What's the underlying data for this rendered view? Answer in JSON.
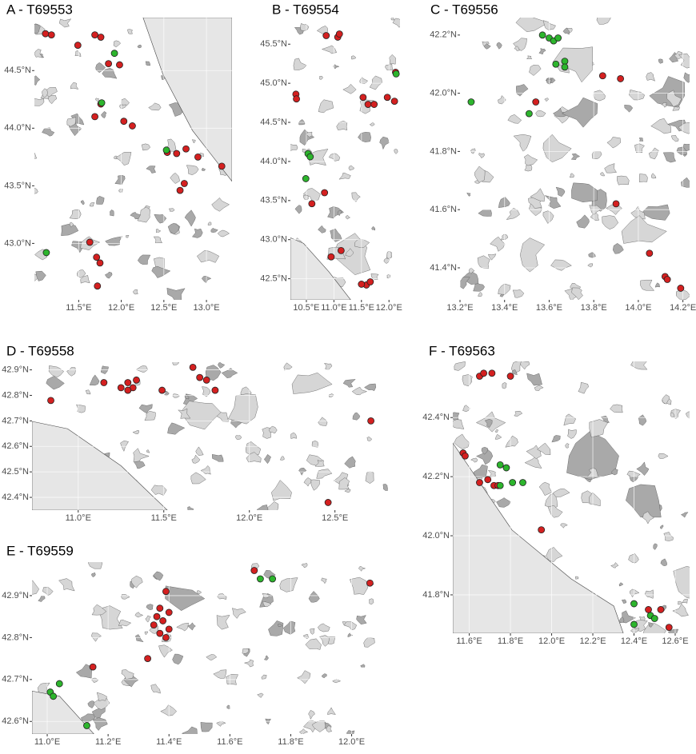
{
  "panels": [
    {
      "title": "A - T69553",
      "xlim": [
        10.98,
        13.3
      ],
      "ylim": [
        42.51,
        44.96
      ],
      "xticks": [
        {
          "value": 11.5,
          "label": "11.5°E"
        },
        {
          "value": 12.0,
          "label": "12.0°E"
        },
        {
          "value": 12.5,
          "label": "12.5°E"
        },
        {
          "value": 13.0,
          "label": "13.0°E"
        }
      ],
      "yticks": [
        {
          "value": 43.0,
          "label": "43.0°N"
        },
        {
          "value": 43.5,
          "label": "43.5°N"
        },
        {
          "value": 44.0,
          "label": "44.0°N"
        },
        {
          "value": 44.5,
          "label": "44.5°N"
        }
      ],
      "series": [
        {
          "color": "#d42020",
          "x": [
            11.11,
            11.18,
            11.49,
            11.69,
            11.76,
            11.85,
            11.98,
            11.76,
            11.69,
            12.03,
            12.13,
            12.54,
            12.65,
            12.76,
            12.9,
            13.18,
            12.74,
            12.69,
            11.63,
            11.71,
            11.75,
            11.72
          ],
          "y": [
            44.82,
            44.81,
            44.72,
            44.81,
            44.79,
            44.56,
            44.55,
            44.21,
            44.1,
            44.06,
            44.02,
            43.79,
            43.78,
            43.82,
            43.75,
            43.67,
            43.52,
            43.46,
            43.01,
            42.88,
            42.83,
            42.63
          ]
        },
        {
          "color": "#2db52d",
          "x": [
            11.92,
            11.77,
            12.53,
            11.12
          ],
          "y": [
            44.65,
            44.22,
            43.81,
            42.92
          ]
        }
      ]
    },
    {
      "title": "B - T69554",
      "xlim": [
        10.21,
        12.2
      ],
      "ylim": [
        42.23,
        45.84
      ],
      "xticks": [
        {
          "value": 10.5,
          "label": "10.5°E"
        },
        {
          "value": 11.0,
          "label": "11.0°E"
        },
        {
          "value": 11.5,
          "label": "11.5°E"
        },
        {
          "value": 12.0,
          "label": "12.0°E"
        }
      ],
      "yticks": [
        {
          "value": 42.5,
          "label": "42.5°N"
        },
        {
          "value": 43.0,
          "label": "43.0°N"
        },
        {
          "value": 43.5,
          "label": "43.5°N"
        },
        {
          "value": 44.0,
          "label": "44.0°N"
        },
        {
          "value": 44.5,
          "label": "44.5°N"
        },
        {
          "value": 45.0,
          "label": "45.0°N"
        },
        {
          "value": 45.5,
          "label": "45.5°N"
        }
      ],
      "series": [
        {
          "color": "#d42020",
          "x": [
            10.86,
            11.07,
            11.1,
            10.31,
            10.32,
            11.53,
            11.62,
            11.73,
            11.97,
            12.1,
            12.12,
            10.6,
            10.83,
            10.95,
            11.13,
            11.59,
            11.66,
            11.5
          ],
          "y": [
            45.61,
            45.59,
            45.63,
            44.86,
            44.8,
            44.82,
            44.73,
            44.73,
            44.82,
            44.77,
            45.14,
            43.46,
            43.6,
            42.78,
            42.86,
            42.42,
            42.46,
            42.43
          ]
        },
        {
          "color": "#2db52d",
          "x": [
            12.13,
            10.53,
            10.57,
            10.49
          ],
          "y": [
            45.12,
            44.1,
            44.06,
            43.78
          ]
        }
      ]
    },
    {
      "title": "C - T69556",
      "xlim": [
        13.2,
        14.23
      ],
      "ylim": [
        41.29,
        42.26
      ],
      "xticks": [
        {
          "value": 13.2,
          "label": "13.2°E"
        },
        {
          "value": 13.4,
          "label": "13.4°E"
        },
        {
          "value": 13.6,
          "label": "13.6°E"
        },
        {
          "value": 13.8,
          "label": "13.8°E"
        },
        {
          "value": 14.0,
          "label": "14.0°E"
        },
        {
          "value": 14.2,
          "label": "14.2°E"
        }
      ],
      "yticks": [
        {
          "value": 41.4,
          "label": "41.4°N"
        },
        {
          "value": 41.6,
          "label": "41.6°N"
        },
        {
          "value": 41.8,
          "label": "41.8°N"
        },
        {
          "value": 42.0,
          "label": "42.0°N"
        },
        {
          "value": 42.2,
          "label": "42.2°N"
        }
      ],
      "series": [
        {
          "color": "#d42020",
          "x": [
            13.84,
            13.92,
            13.54,
            13.9,
            14.05,
            14.12,
            14.19,
            14.13
          ],
          "y": [
            42.06,
            42.05,
            41.97,
            41.62,
            41.45,
            41.37,
            41.33,
            41.36
          ]
        },
        {
          "color": "#2db52d",
          "x": [
            13.57,
            13.6,
            13.62,
            13.64,
            13.63,
            13.67,
            13.67,
            13.25,
            13.51
          ],
          "y": [
            42.2,
            42.19,
            42.18,
            42.19,
            42.1,
            42.11,
            42.09,
            41.97,
            41.93
          ]
        }
      ]
    },
    {
      "title": "D - T69558",
      "xlim": [
        10.73,
        12.81
      ],
      "ylim": [
        42.35,
        42.93
      ],
      "xticks": [
        {
          "value": 11.0,
          "label": "11.0°E"
        },
        {
          "value": 11.5,
          "label": "11.5°E"
        },
        {
          "value": 12.0,
          "label": "12.0°E"
        },
        {
          "value": 12.5,
          "label": "12.5°E"
        }
      ],
      "yticks": [
        {
          "value": 42.4,
          "label": "42.4°N"
        },
        {
          "value": 42.5,
          "label": "42.5°N"
        },
        {
          "value": 42.6,
          "label": "42.6°N"
        },
        {
          "value": 42.7,
          "label": "42.7°N"
        },
        {
          "value": 42.8,
          "label": "42.8°N"
        },
        {
          "value": 42.9,
          "label": "42.9°N"
        }
      ],
      "series": [
        {
          "color": "#d42020",
          "x": [
            10.84,
            11.15,
            11.25,
            11.29,
            11.32,
            11.34,
            11.29,
            11.49,
            11.67,
            11.71,
            11.75,
            11.8,
            12.71,
            12.46
          ],
          "y": [
            42.78,
            42.85,
            42.83,
            42.85,
            42.83,
            42.86,
            42.82,
            42.82,
            42.91,
            42.87,
            42.86,
            42.82,
            42.7,
            42.38
          ]
        }
      ]
    },
    {
      "title": "E - T69559",
      "xlim": [
        10.95,
        12.08
      ],
      "ylim": [
        42.57,
        42.98
      ],
      "xticks": [
        {
          "value": 11.0,
          "label": "11.0°E"
        },
        {
          "value": 11.2,
          "label": "11.2°E"
        },
        {
          "value": 11.4,
          "label": "11.4°E"
        },
        {
          "value": 11.6,
          "label": "11.6°E"
        },
        {
          "value": 11.8,
          "label": "11.8°E"
        },
        {
          "value": 12.0,
          "label": "12.0°E"
        }
      ],
      "yticks": [
        {
          "value": 42.6,
          "label": "42.6°N"
        },
        {
          "value": 42.7,
          "label": "42.7°N"
        },
        {
          "value": 42.8,
          "label": "42.8°N"
        },
        {
          "value": 42.9,
          "label": "42.9°N"
        }
      ],
      "series": [
        {
          "color": "#d42020",
          "x": [
            11.39,
            11.37,
            11.36,
            11.38,
            11.35,
            11.4,
            11.4,
            11.37,
            11.39,
            11.33,
            11.15,
            11.68,
            12.06
          ],
          "y": [
            42.91,
            42.87,
            42.85,
            42.84,
            42.83,
            42.86,
            42.82,
            42.81,
            42.8,
            42.75,
            42.73,
            42.96,
            42.93
          ]
        },
        {
          "color": "#2db52d",
          "x": [
            11.7,
            11.74,
            11.04,
            11.01,
            11.02,
            11.13
          ],
          "y": [
            42.94,
            42.94,
            42.69,
            42.67,
            42.66,
            42.59
          ]
        }
      ]
    },
    {
      "title": "F - T69563",
      "xlim": [
        11.52,
        12.67
      ],
      "ylim": [
        41.67,
        42.59
      ],
      "xticks": [
        {
          "value": 11.6,
          "label": "11.6°E"
        },
        {
          "value": 11.8,
          "label": "11.8°E"
        },
        {
          "value": 12.0,
          "label": "12.0°E"
        },
        {
          "value": 12.2,
          "label": "12.2°E"
        },
        {
          "value": 12.4,
          "label": "12.4°E"
        },
        {
          "value": 12.6,
          "label": "12.6°E"
        }
      ],
      "yticks": [
        {
          "value": 41.8,
          "label": "41.8°N"
        },
        {
          "value": 42.0,
          "label": "42.0°N"
        },
        {
          "value": 42.2,
          "label": "42.2°N"
        },
        {
          "value": 42.4,
          "label": "42.4°N"
        }
      ],
      "series": [
        {
          "color": "#d42020",
          "x": [
            11.65,
            11.67,
            11.71,
            11.8,
            11.57,
            11.58,
            11.65,
            11.69,
            11.72,
            11.74,
            11.95,
            12.47,
            12.53,
            12.57
          ],
          "y": [
            42.54,
            42.55,
            42.55,
            42.54,
            42.28,
            42.27,
            42.18,
            42.19,
            42.17,
            42.17,
            42.02,
            41.75,
            41.75,
            41.69
          ]
        },
        {
          "color": "#2db52d",
          "x": [
            11.75,
            11.78,
            11.75,
            11.81,
            11.86,
            12.4,
            12.4,
            12.48,
            12.5
          ],
          "y": [
            42.24,
            42.23,
            42.17,
            42.18,
            42.18,
            41.77,
            41.7,
            41.73,
            41.72
          ]
        }
      ]
    }
  ]
}
